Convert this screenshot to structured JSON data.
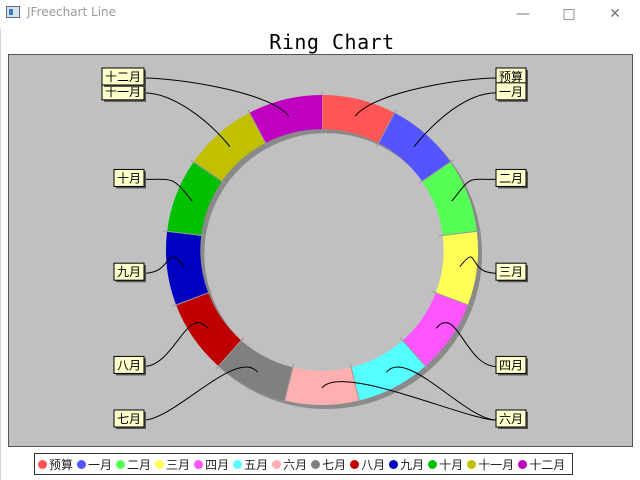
{
  "window": {
    "title": "JFreechart Line",
    "minimize_glyph": "—",
    "maximize_glyph": "□",
    "close_glyph": "✕"
  },
  "chart_data": {
    "type": "pie",
    "variant": "ring",
    "title": "Ring Chart",
    "categories": [
      "预算",
      "一月",
      "二月",
      "三月",
      "四月",
      "五月",
      "六月",
      "七月",
      "八月",
      "九月",
      "十月",
      "十一月",
      "十二月"
    ],
    "values": [
      1,
      1,
      1,
      1,
      1,
      1,
      1,
      1,
      1,
      1,
      1,
      1,
      1
    ],
    "colors": [
      "#ff5555",
      "#5555ff",
      "#55ff55",
      "#ffff55",
      "#ff55ff",
      "#55ffff",
      "#ffafaf",
      "#808080",
      "#c00000",
      "#0000c0",
      "#00c000",
      "#c0c000",
      "#c000c0"
    ],
    "background": "#c0c0c0",
    "label_background": "#ffffcc",
    "legend_position": "bottom"
  }
}
